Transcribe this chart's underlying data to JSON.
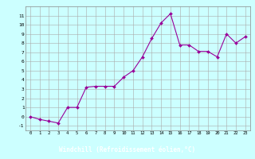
{
  "line_color": "#990099",
  "marker_color": "#990099",
  "bg_color": "#ccffff",
  "grid_color": "#aaaaaa",
  "xlabel": "Windchill (Refroidissement éolien,°C)",
  "xlabel_bg": "#7700aa",
  "xlabel_fg": "#ffffff",
  "ylim": [
    -1.5,
    12
  ],
  "xlim": [
    -0.5,
    23.5
  ],
  "yticks": [
    -1,
    0,
    1,
    2,
    3,
    4,
    5,
    6,
    7,
    8,
    9,
    10,
    11
  ],
  "xticks": [
    0,
    1,
    2,
    3,
    4,
    5,
    6,
    7,
    8,
    9,
    10,
    11,
    12,
    13,
    14,
    15,
    16,
    17,
    18,
    19,
    20,
    21,
    22,
    23
  ],
  "data_points": [
    [
      0,
      0.0
    ],
    [
      1,
      -0.3
    ],
    [
      2,
      -0.5
    ],
    [
      3,
      -0.7
    ],
    [
      4,
      1.0
    ],
    [
      5,
      1.0
    ],
    [
      6,
      3.2
    ],
    [
      7,
      3.3
    ],
    [
      8,
      3.3
    ],
    [
      9,
      3.3
    ],
    [
      10,
      4.3
    ],
    [
      11,
      5.0
    ],
    [
      12,
      6.5
    ],
    [
      13,
      8.5
    ],
    [
      14,
      10.2
    ],
    [
      15,
      11.2
    ],
    [
      16,
      7.8
    ],
    [
      17,
      7.8
    ],
    [
      18,
      7.1
    ],
    [
      19,
      7.1
    ],
    [
      20,
      6.5
    ],
    [
      21,
      9.0
    ],
    [
      22,
      8.0
    ],
    [
      23,
      8.7
    ]
  ]
}
